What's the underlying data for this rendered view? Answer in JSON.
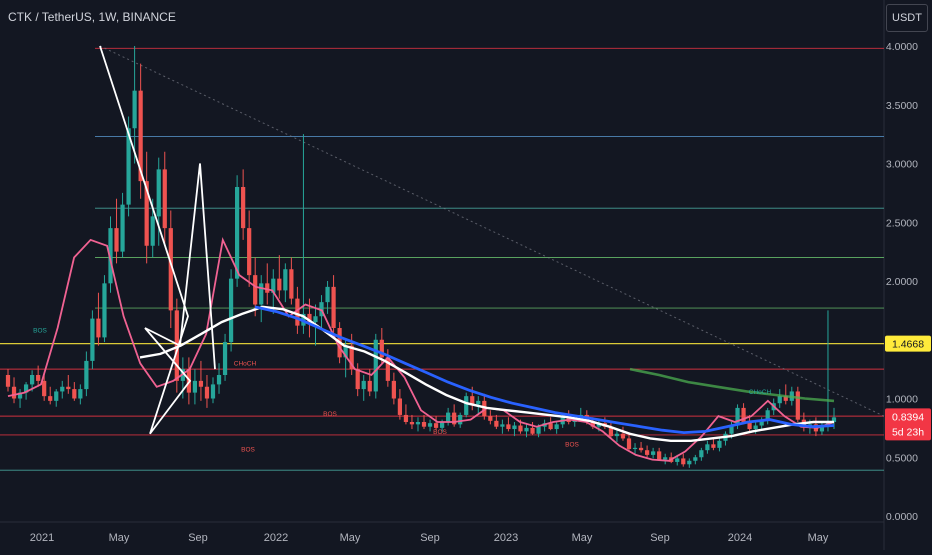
{
  "header": {
    "title": "CTK / TetherUS, 1W, BINANCE",
    "currency": "USDT"
  },
  "price_badges": {
    "last": "0.8394",
    "countdown": "5d 23h",
    "level": "1.4668"
  },
  "colors": {
    "background": "#131722",
    "up": "#26a69a",
    "down": "#ef5350",
    "ema_fast": "#f06292",
    "ema_mid": "#ffffff",
    "ema_slow": "#2962ff",
    "ema_long": "#4caf50",
    "level_yellow": "#ffeb3b",
    "level_red": "#f23645"
  },
  "chart_data": {
    "type": "candlestick",
    "symbol": "CTK / TetherUS",
    "interval": "1W",
    "exchange": "BINANCE",
    "y_axis": {
      "ticks": [
        "4.0000",
        "3.5000",
        "3.0000",
        "2.5000",
        "2.0000",
        "1.5000",
        "1.0000",
        "0.5000",
        "0.0000"
      ],
      "range": [
        -0.05,
        4.05
      ]
    },
    "x_axis": {
      "ticks": [
        "2021",
        "May",
        "Sep",
        "2022",
        "May",
        "Sep",
        "2023",
        "May",
        "Sep",
        "2024",
        "May"
      ]
    },
    "candles": [
      [
        1.2,
        1.25,
        1.06,
        1.1
      ],
      [
        1.1,
        1.18,
        0.96,
        1.0
      ],
      [
        1.0,
        1.08,
        0.92,
        1.05
      ],
      [
        1.05,
        1.14,
        0.99,
        1.12
      ],
      [
        1.12,
        1.24,
        1.06,
        1.2
      ],
      [
        1.2,
        1.28,
        1.1,
        1.15
      ],
      [
        1.15,
        1.22,
        0.98,
        1.02
      ],
      [
        1.02,
        1.1,
        0.95,
        0.98
      ],
      [
        0.98,
        1.08,
        0.93,
        1.06
      ],
      [
        1.06,
        1.15,
        1.0,
        1.1
      ],
      [
        1.1,
        1.2,
        1.04,
        1.08
      ],
      [
        1.08,
        1.14,
        0.98,
        1.0
      ],
      [
        1.0,
        1.12,
        0.95,
        1.08
      ],
      [
        1.08,
        1.4,
        1.02,
        1.32
      ],
      [
        1.32,
        1.75,
        1.25,
        1.68
      ],
      [
        1.68,
        1.9,
        1.45,
        1.52
      ],
      [
        1.52,
        2.05,
        1.48,
        1.98
      ],
      [
        1.98,
        2.55,
        1.9,
        2.45
      ],
      [
        2.45,
        2.7,
        2.15,
        2.25
      ],
      [
        2.25,
        2.75,
        2.2,
        2.65
      ],
      [
        2.65,
        3.4,
        2.55,
        3.3
      ],
      [
        3.3,
        4.0,
        3.0,
        3.62
      ],
      [
        3.62,
        3.85,
        2.7,
        2.85
      ],
      [
        2.85,
        3.1,
        2.15,
        2.3
      ],
      [
        2.3,
        2.7,
        2.2,
        2.55
      ],
      [
        2.55,
        3.05,
        2.3,
        2.95
      ],
      [
        2.95,
        3.1,
        2.3,
        2.45
      ],
      [
        2.45,
        2.6,
        1.6,
        1.75
      ],
      [
        1.75,
        1.85,
        1.05,
        1.15
      ],
      [
        1.15,
        1.35,
        1.0,
        1.25
      ],
      [
        1.25,
        1.35,
        0.95,
        1.05
      ],
      [
        1.05,
        1.25,
        0.95,
        1.15
      ],
      [
        1.15,
        1.32,
        0.98,
        1.1
      ],
      [
        1.1,
        1.2,
        0.92,
        1.0
      ],
      [
        1.0,
        1.18,
        0.96,
        1.12
      ],
      [
        1.12,
        1.3,
        1.04,
        1.2
      ],
      [
        1.2,
        1.55,
        1.15,
        1.48
      ],
      [
        1.48,
        2.1,
        1.4,
        2.02
      ],
      [
        2.02,
        2.9,
        1.95,
        2.8
      ],
      [
        2.8,
        2.95,
        2.35,
        2.45
      ],
      [
        2.45,
        2.6,
        1.95,
        2.05
      ],
      [
        2.05,
        2.2,
        1.7,
        1.8
      ],
      [
        1.8,
        2.05,
        1.65,
        1.98
      ],
      [
        1.98,
        2.15,
        1.8,
        1.9
      ],
      [
        1.9,
        2.1,
        1.72,
        2.02
      ],
      [
        2.02,
        2.22,
        1.85,
        1.92
      ],
      [
        1.92,
        2.15,
        1.82,
        2.1
      ],
      [
        2.1,
        2.2,
        1.8,
        1.85
      ],
      [
        1.85,
        1.95,
        1.55,
        1.62
      ],
      [
        1.62,
        3.25,
        1.55,
        1.72
      ],
      [
        1.72,
        1.85,
        1.52,
        1.65
      ],
      [
        1.65,
        1.8,
        1.45,
        1.7
      ],
      [
        1.7,
        1.88,
        1.6,
        1.82
      ],
      [
        1.82,
        2.0,
        1.72,
        1.95
      ],
      [
        1.95,
        2.05,
        1.55,
        1.6
      ],
      [
        1.6,
        1.65,
        1.3,
        1.35
      ],
      [
        1.35,
        1.5,
        1.18,
        1.45
      ],
      [
        1.45,
        1.55,
        1.2,
        1.25
      ],
      [
        1.25,
        1.3,
        1.02,
        1.08
      ],
      [
        1.08,
        1.2,
        0.98,
        1.15
      ],
      [
        1.15,
        1.25,
        1.02,
        1.06
      ],
      [
        1.06,
        1.55,
        1.0,
        1.5
      ],
      [
        1.5,
        1.6,
        1.3,
        1.35
      ],
      [
        1.35,
        1.42,
        1.1,
        1.15
      ],
      [
        1.15,
        1.22,
        0.95,
        1.0
      ],
      [
        1.0,
        1.08,
        0.82,
        0.86
      ],
      [
        0.86,
        0.95,
        0.78,
        0.8
      ],
      [
        0.8,
        0.86,
        0.74,
        0.78
      ],
      [
        0.78,
        0.84,
        0.72,
        0.8
      ],
      [
        0.8,
        0.86,
        0.74,
        0.76
      ],
      [
        0.76,
        0.82,
        0.72,
        0.79
      ],
      [
        0.79,
        0.85,
        0.73,
        0.75
      ],
      [
        0.75,
        0.82,
        0.71,
        0.8
      ],
      [
        0.8,
        0.92,
        0.77,
        0.88
      ],
      [
        0.88,
        0.95,
        0.76,
        0.78
      ],
      [
        0.78,
        0.88,
        0.75,
        0.86
      ],
      [
        0.86,
        1.05,
        0.84,
        1.02
      ],
      [
        1.02,
        1.1,
        0.9,
        0.95
      ],
      [
        0.95,
        1.02,
        0.86,
        0.98
      ],
      [
        0.98,
        1.04,
        0.82,
        0.85
      ],
      [
        0.85,
        0.9,
        0.78,
        0.81
      ],
      [
        0.81,
        0.86,
        0.74,
        0.76
      ],
      [
        0.76,
        0.82,
        0.7,
        0.78
      ],
      [
        0.78,
        0.84,
        0.72,
        0.74
      ],
      [
        0.74,
        0.8,
        0.68,
        0.77
      ],
      [
        0.77,
        0.82,
        0.7,
        0.72
      ],
      [
        0.72,
        0.78,
        0.67,
        0.75
      ],
      [
        0.75,
        0.8,
        0.69,
        0.7
      ],
      [
        0.7,
        0.78,
        0.67,
        0.76
      ],
      [
        0.76,
        0.82,
        0.72,
        0.79
      ],
      [
        0.79,
        0.84,
        0.73,
        0.74
      ],
      [
        0.74,
        0.8,
        0.7,
        0.78
      ],
      [
        0.78,
        0.86,
        0.75,
        0.84
      ],
      [
        0.84,
        0.9,
        0.78,
        0.8
      ],
      [
        0.8,
        0.86,
        0.76,
        0.83
      ],
      [
        0.83,
        0.92,
        0.8,
        0.86
      ],
      [
        0.86,
        0.9,
        0.78,
        0.8
      ],
      [
        0.8,
        0.84,
        0.74,
        0.76
      ],
      [
        0.76,
        0.82,
        0.72,
        0.79
      ],
      [
        0.79,
        0.84,
        0.74,
        0.76
      ],
      [
        0.76,
        0.8,
        0.66,
        0.68
      ],
      [
        0.68,
        0.74,
        0.63,
        0.7
      ],
      [
        0.7,
        0.76,
        0.64,
        0.66
      ],
      [
        0.66,
        0.7,
        0.55,
        0.57
      ],
      [
        0.57,
        0.62,
        0.53,
        0.58
      ],
      [
        0.58,
        0.63,
        0.54,
        0.56
      ],
      [
        0.56,
        0.6,
        0.5,
        0.52
      ],
      [
        0.52,
        0.58,
        0.49,
        0.55
      ],
      [
        0.55,
        0.58,
        0.47,
        0.48
      ],
      [
        0.48,
        0.53,
        0.44,
        0.5
      ],
      [
        0.5,
        0.54,
        0.45,
        0.46
      ],
      [
        0.46,
        0.52,
        0.43,
        0.49
      ],
      [
        0.49,
        0.53,
        0.42,
        0.44
      ],
      [
        0.44,
        0.49,
        0.41,
        0.47
      ],
      [
        0.47,
        0.52,
        0.44,
        0.5
      ],
      [
        0.5,
        0.58,
        0.47,
        0.56
      ],
      [
        0.56,
        0.64,
        0.53,
        0.61
      ],
      [
        0.61,
        0.66,
        0.56,
        0.58
      ],
      [
        0.58,
        0.66,
        0.55,
        0.64
      ],
      [
        0.64,
        0.72,
        0.6,
        0.7
      ],
      [
        0.7,
        0.8,
        0.66,
        0.77
      ],
      [
        0.77,
        0.95,
        0.74,
        0.92
      ],
      [
        0.92,
        0.96,
        0.78,
        0.8
      ],
      [
        0.8,
        0.86,
        0.72,
        0.74
      ],
      [
        0.74,
        0.8,
        0.7,
        0.77
      ],
      [
        0.77,
        0.84,
        0.73,
        0.81
      ],
      [
        0.81,
        0.92,
        0.78,
        0.9
      ],
      [
        0.9,
        1.0,
        0.86,
        0.96
      ],
      [
        0.96,
        1.08,
        0.92,
        1.02
      ],
      [
        1.02,
        1.12,
        0.95,
        0.98
      ],
      [
        0.98,
        1.1,
        0.94,
        1.06
      ],
      [
        1.06,
        1.1,
        0.8,
        0.82
      ],
      [
        0.82,
        0.88,
        0.72,
        0.76
      ],
      [
        0.76,
        0.82,
        0.7,
        0.78
      ],
      [
        0.78,
        0.84,
        0.68,
        0.72
      ],
      [
        0.72,
        0.8,
        0.69,
        0.76
      ],
      [
        0.76,
        1.75,
        0.72,
        0.8
      ],
      [
        0.8,
        0.92,
        0.74,
        0.8394
      ]
    ],
    "series": [
      {
        "name": "",
        "color": "#f06292",
        "values": [
          1.02,
          1.05,
          1.12,
          1.6,
          2.2,
          2.35,
          2.3,
          1.7,
          1.3,
          1.1,
          1.15,
          1.25,
          1.55,
          2.35,
          2.05,
          1.95,
          1.92,
          1.7,
          1.8,
          1.75,
          1.45,
          1.25,
          1.2,
          1.35,
          1.18,
          0.9,
          0.8,
          0.8,
          0.82,
          0.92,
          0.9,
          0.8,
          0.76,
          0.8,
          0.82,
          0.8,
          0.72,
          0.6,
          0.52,
          0.48,
          0.47,
          0.55,
          0.68,
          0.85,
          0.8,
          0.85,
          0.98,
          0.85,
          0.76,
          0.75,
          0.8
        ]
      },
      {
        "name": "",
        "color": "#ffffff",
        "values": [
          1.35,
          1.38,
          1.45,
          1.55,
          1.65,
          1.72,
          1.78,
          1.76,
          1.7,
          1.58,
          1.45,
          1.4,
          1.32,
          1.22,
          1.12,
          1.03,
          0.96,
          0.92,
          0.9,
          0.88,
          0.86,
          0.84,
          0.81,
          0.76,
          0.7,
          0.66,
          0.64,
          0.64,
          0.66,
          0.68,
          0.72,
          0.75,
          0.78,
          0.8,
          0.8
        ]
      },
      {
        "name": "",
        "color": "#2962ff",
        "values": [
          1.78,
          1.74,
          1.68,
          1.6,
          1.52,
          1.45,
          1.38,
          1.3,
          1.22,
          1.14,
          1.07,
          1.01,
          0.96,
          0.92,
          0.88,
          0.85,
          0.82,
          0.79,
          0.76,
          0.73,
          0.71,
          0.72,
          0.76,
          0.8,
          0.82,
          0.78,
          0.76,
          0.77
        ]
      },
      {
        "name": "",
        "color": "#4caf50",
        "values": [
          1.25,
          1.2,
          1.14,
          1.1,
          1.06,
          1.03,
          1.0,
          0.98
        ]
      }
    ],
    "horizontal_levels": [
      3.98,
      3.23,
      2.62,
      2.2,
      1.77,
      1.4668,
      1.25,
      0.85,
      0.69,
      0.39
    ],
    "annotations": [
      "BOS",
      "CHoCH",
      "BOS",
      "BOS",
      "BOS",
      "BOS",
      "CHoCH"
    ]
  }
}
